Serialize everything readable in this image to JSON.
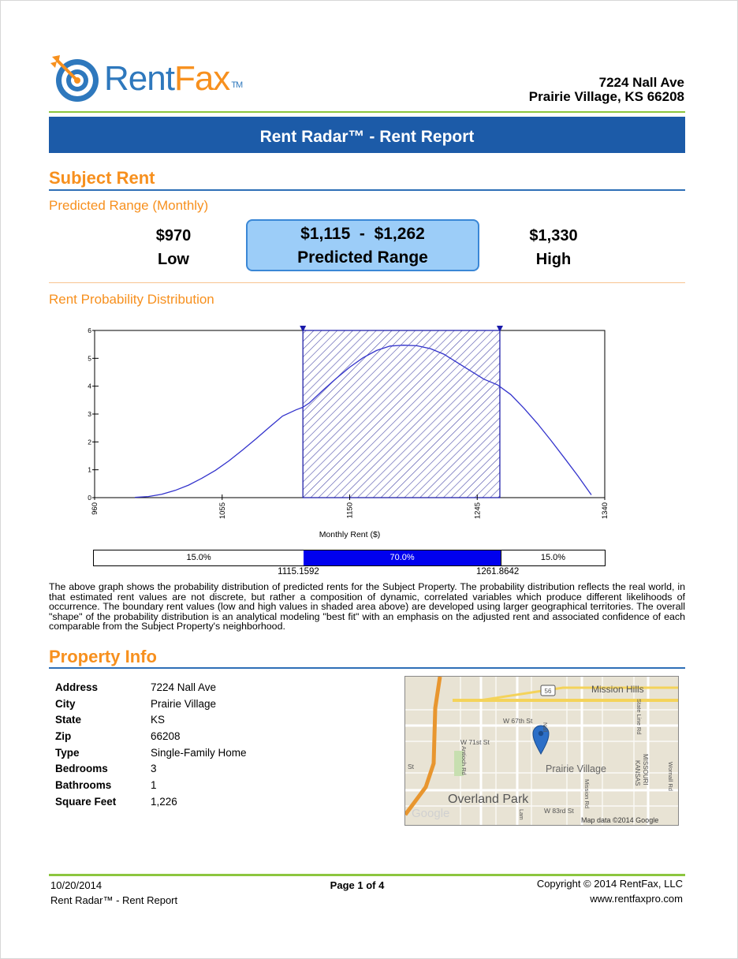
{
  "brand": {
    "name_part1": "Rent",
    "name_part2": "Fax",
    "tm": "TM"
  },
  "property_address": {
    "line1": "7224 Nall Ave",
    "line2": "Prairie Village, KS 66208"
  },
  "banner": "Rent Radar™ - Rent Report",
  "subject_rent": {
    "title": "Subject Rent",
    "predicted_range_label": "Predicted Range (Monthly)",
    "low_value": "$970",
    "low_label": "Low",
    "range_value": "$1,115  -  $1,262",
    "range_label": "Predicted Range",
    "high_value": "$1,330",
    "high_label": "High"
  },
  "distribution": {
    "title": "Rent Probability Distribution",
    "bar_left_pct": "15.0%",
    "bar_mid_pct": "70.0%",
    "bar_right_pct": "15.0%",
    "boundary_low": "1115.1592",
    "boundary_high": "1261.8642",
    "description": "The above graph shows the probability distribution of predicted rents for the Subject Property. The probability distribution reflects the real world, in that estimated rent values are not discrete, but rather a composition of dynamic, correlated variables which produce different likelihoods of occurrence. The boundary rent values (low and high values in shaded area above) are developed using larger geographical territories. The overall \"shape\" of the probability distribution is an analytical modeling \"best fit\" with an emphasis on the adjusted rent and associated confidence of each comparable from the Subject Property's neighborhood."
  },
  "chart_data": {
    "type": "area",
    "xlabel": "Monthly Rent ($)",
    "ylabel": "",
    "xlim": [
      960,
      1340
    ],
    "ylim": [
      0,
      6
    ],
    "x_ticks": [
      "960",
      "1055",
      "1150",
      "1245",
      "1340"
    ],
    "y_ticks": [
      "0",
      "1",
      "2",
      "3",
      "4",
      "5",
      "6"
    ],
    "shaded_range": [
      1115.1592,
      1261.8642
    ],
    "series": [
      {
        "x": [
          990,
          1000,
          1010,
          1020,
          1030,
          1040,
          1050,
          1060,
          1070,
          1080,
          1090,
          1100,
          1110,
          1115,
          1120,
          1130,
          1140,
          1150,
          1160,
          1170,
          1180,
          1190,
          1200,
          1210,
          1220,
          1230,
          1240,
          1250,
          1260,
          1270,
          1280,
          1290,
          1300,
          1310,
          1320,
          1330
        ],
        "values": [
          0.01,
          0.04,
          0.12,
          0.26,
          0.45,
          0.7,
          0.98,
          1.32,
          1.7,
          2.1,
          2.52,
          2.93,
          3.15,
          3.24,
          3.4,
          3.85,
          4.28,
          4.68,
          5.02,
          5.28,
          5.44,
          5.47,
          5.45,
          5.35,
          5.15,
          4.85,
          4.55,
          4.25,
          4.05,
          3.7,
          3.2,
          2.65,
          2.05,
          1.42,
          0.78,
          0.1
        ]
      }
    ]
  },
  "property_info": {
    "title": "Property Info",
    "rows": [
      {
        "label": "Address",
        "value": "7224 Nall Ave"
      },
      {
        "label": "City",
        "value": "Prairie Village"
      },
      {
        "label": "State",
        "value": "KS"
      },
      {
        "label": "Zip",
        "value": "66208"
      },
      {
        "label": "Type",
        "value": "Single-Family Home"
      },
      {
        "label": "Bedrooms",
        "value": "3"
      },
      {
        "label": "Bathrooms",
        "value": "1"
      },
      {
        "label": "Square Feet",
        "value": "1,226"
      }
    ]
  },
  "map": {
    "labels": {
      "mission_hills": "Mission Hills",
      "w67": "W 67th St",
      "w71": "W 71st St",
      "prairie_village": "Prairie Village",
      "overland_park": "Overland Park",
      "w83": "W 83rd St",
      "state_line": "State Line Rd",
      "missouri": "MISSOURI",
      "kansas": "KANSAS",
      "wornall": "Wornall Rd",
      "mission_rd": "Mission Rd",
      "antioch": "Antioch Rd",
      "nall": "Nall",
      "lamar": "Lam",
      "st": "St",
      "route": "56",
      "google": "Google",
      "attribution": "Map data ©2014 Google"
    }
  },
  "footer": {
    "date": "10/20/2014",
    "report_name": "Rent Radar™ - Rent Report",
    "page": "Page 1 of 4",
    "copyright": "Copyright © 2014 RentFax, LLC",
    "website": "www.rentfaxpro.com"
  },
  "colors": {
    "orange": "#f7901e",
    "blue": "#2e78bd",
    "banner": "#1c5ba8",
    "green": "#8cc63f",
    "curve": "#3333cc",
    "mid_bar": "#0000ee"
  }
}
